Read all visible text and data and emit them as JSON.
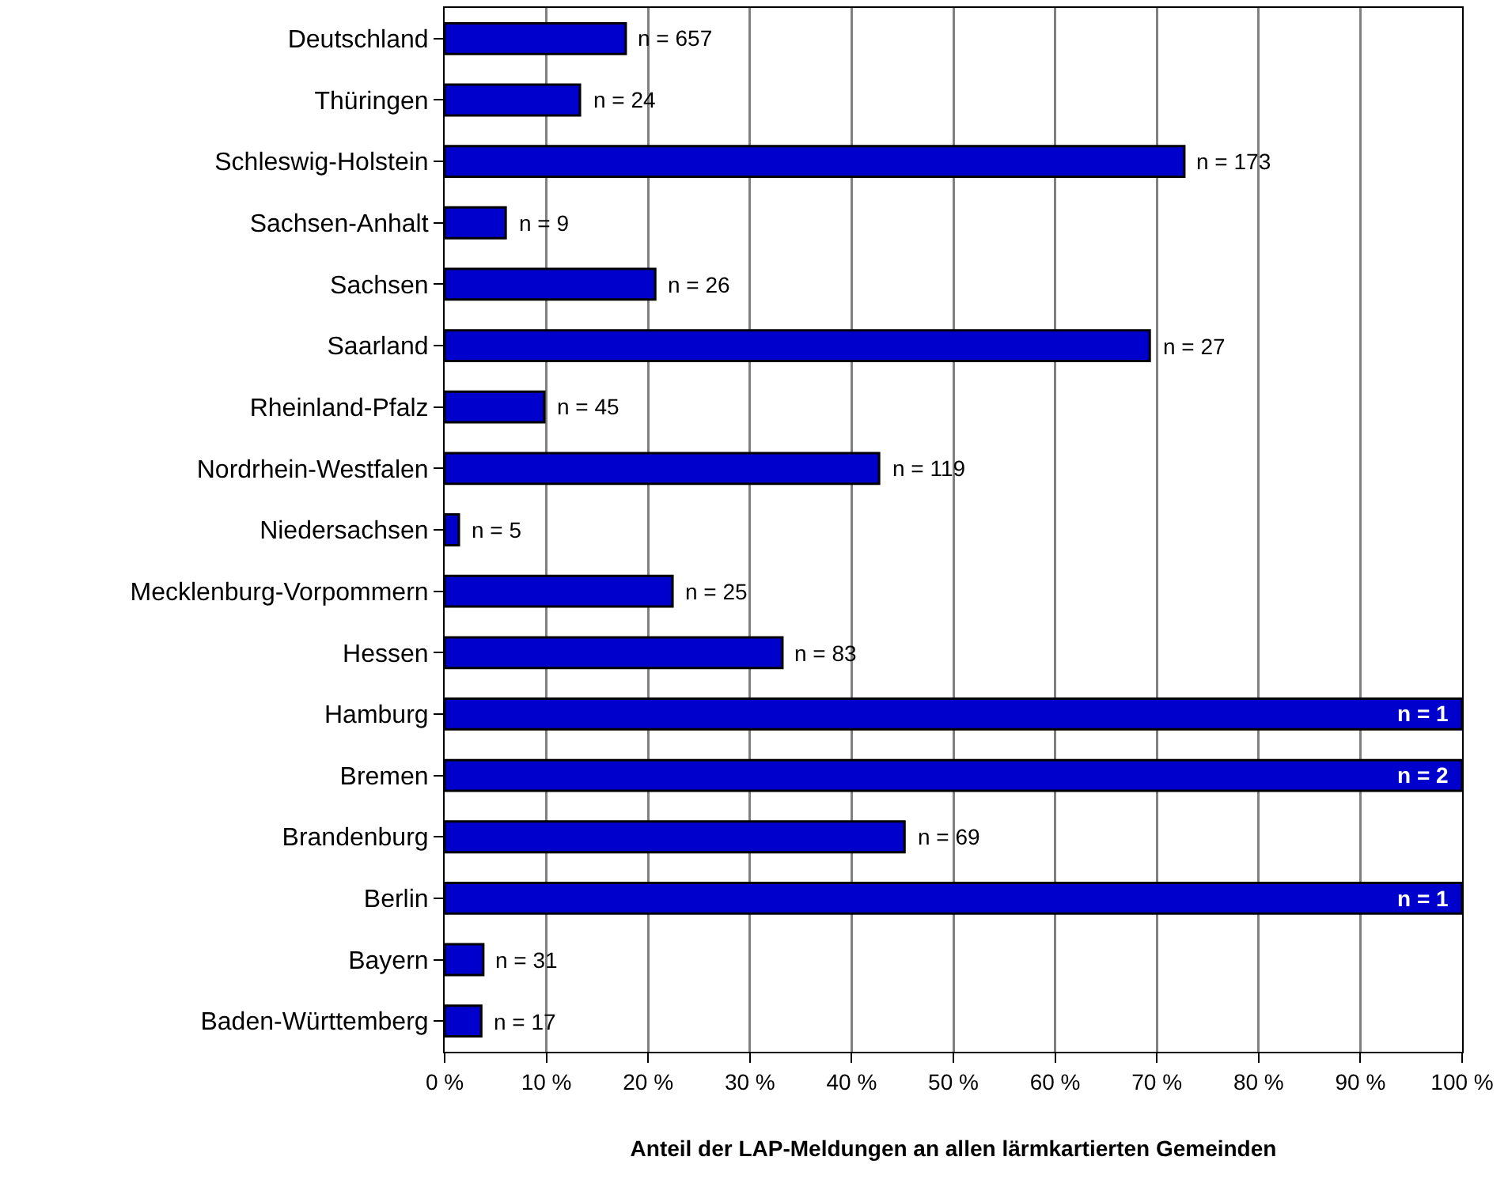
{
  "chart_data": {
    "type": "bar",
    "orientation": "horizontal",
    "xlabel": "Anteil der LAP-Meldungen an allen lärmkartierten Gemeinden",
    "categories": [
      "Deutschland",
      "Thüringen",
      "Schleswig-Holstein",
      "Sachsen-Anhalt",
      "Sachsen",
      "Saarland",
      "Rheinland-Pfalz",
      "Nordrhein-Westfalen",
      "Niedersachsen",
      "Mecklenburg-Vorpommern",
      "Hessen",
      "Hamburg",
      "Bremen",
      "Brandenburg",
      "Berlin",
      "Bayern",
      "Baden-Württemberg"
    ],
    "values": [
      17.8,
      13.3,
      72.7,
      6.0,
      20.7,
      69.3,
      9.8,
      42.7,
      1.4,
      22.4,
      33.2,
      100,
      100,
      45.2,
      100,
      3.8,
      3.6
    ],
    "annotations": [
      {
        "text": "n = 657",
        "x": 17.8,
        "y": "Deutschland"
      },
      {
        "text": "n = 24",
        "x": 13.3,
        "y": "Thüringen"
      },
      {
        "text": "n = 173",
        "x": 72.7,
        "y": "Schleswig-Holstein"
      },
      {
        "text": "n = 9",
        "x": 6.0,
        "y": "Sachsen-Anhalt"
      },
      {
        "text": "n = 26",
        "x": 20.7,
        "y": "Sachsen"
      },
      {
        "text": "n = 27",
        "x": 69.3,
        "y": "Saarland"
      },
      {
        "text": "n = 45",
        "x": 9.8,
        "y": "Rheinland-Pfalz"
      },
      {
        "text": "n = 119",
        "x": 42.7,
        "y": "Nordrhein-Westfalen"
      },
      {
        "text": "n = 5",
        "x": 1.4,
        "y": "Niedersachsen"
      },
      {
        "text": "n = 25",
        "x": 22.4,
        "y": "Mecklenburg-Vorpommern"
      },
      {
        "text": "n = 83",
        "x": 33.2,
        "y": "Hessen"
      },
      {
        "text": "n = 1",
        "x": 100,
        "y": "Hamburg"
      },
      {
        "text": "n = 2",
        "x": 100,
        "y": "Bremen"
      },
      {
        "text": "n = 69",
        "x": 45.2,
        "y": "Brandenburg"
      },
      {
        "text": "n = 1",
        "x": 100,
        "y": "Berlin"
      },
      {
        "text": "n = 31",
        "x": 3.8,
        "y": "Bayern"
      },
      {
        "text": "n = 17",
        "x": 3.6,
        "y": "Baden-Württemberg"
      }
    ],
    "color": "#0000cc",
    "xlim": [
      0,
      100
    ],
    "xticks": [
      {
        "value": 0,
        "label": "0 %"
      },
      {
        "value": 10,
        "label": "10 %"
      },
      {
        "value": 20,
        "label": "20 %"
      },
      {
        "value": 30,
        "label": "30 %"
      },
      {
        "value": 40,
        "label": "40 %"
      },
      {
        "value": 50,
        "label": "50 %"
      },
      {
        "value": 60,
        "label": "60 %"
      },
      {
        "value": 70,
        "label": "70 %"
      },
      {
        "value": 80,
        "label": "80 %"
      },
      {
        "value": 90,
        "label": "90 %"
      },
      {
        "value": 100,
        "label": "100 %"
      }
    ],
    "grid": "x",
    "legend": false
  }
}
